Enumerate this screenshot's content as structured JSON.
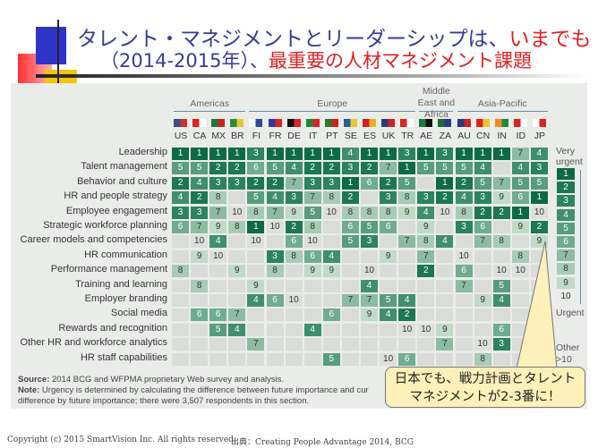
{
  "title": {
    "part1": "タレント・マネジメントとリーダーシップは、",
    "part1_red": "いまでも",
    "part2": "（2014-2015年）、",
    "part2_red": "最重要の人材マネジメント課題"
  },
  "chart_data": {
    "type": "heatmap",
    "regions": [
      {
        "name": "Americas",
        "countries": [
          "US",
          "CA",
          "MX",
          "BR"
        ]
      },
      {
        "name": "Europe",
        "countries": [
          "FI",
          "FR",
          "DE",
          "IT",
          "PT",
          "SE",
          "ES",
          "UK",
          "TR"
        ]
      },
      {
        "name": "Middle East and Africa",
        "countries": [
          "AE",
          "ZA"
        ]
      },
      {
        "name": "Asia-Pacific",
        "countries": [
          "AU",
          "CN",
          "IN",
          "ID",
          "JP"
        ]
      }
    ],
    "columns": [
      "US",
      "CA",
      "MX",
      "BR",
      "FI",
      "FR",
      "DE",
      "IT",
      "PT",
      "SE",
      "ES",
      "UK",
      "TR",
      "AE",
      "ZA",
      "AU",
      "CN",
      "IN",
      "ID",
      "JP"
    ],
    "rows": [
      {
        "label": "Leadership",
        "values": [
          1,
          1,
          1,
          1,
          3,
          1,
          1,
          1,
          1,
          4,
          1,
          1,
          3,
          1,
          3,
          1,
          1,
          1,
          7,
          4
        ]
      },
      {
        "label": "Talent management",
        "values": [
          5,
          5,
          2,
          2,
          6,
          5,
          4,
          2,
          2,
          3,
          2,
          7,
          1,
          5,
          5,
          5,
          4,
          null,
          4,
          3
        ]
      },
      {
        "label": "Behavior and culture",
        "values": [
          2,
          4,
          3,
          3,
          2,
          2,
          7,
          3,
          3,
          1,
          6,
          2,
          5,
          null,
          1,
          2,
          5,
          7,
          5,
          5
        ]
      },
      {
        "label": "HR and people strategy",
        "values": [
          4,
          2,
          8,
          null,
          5,
          4,
          3,
          7,
          8,
          2,
          null,
          3,
          8,
          3,
          2,
          4,
          3,
          9,
          6,
          1
        ]
      },
      {
        "label": "Employee engagement",
        "values": [
          3,
          3,
          7,
          10,
          8,
          7,
          9,
          5,
          10,
          8,
          8,
          8,
          9,
          4,
          10,
          8,
          2,
          2,
          1,
          10
        ]
      },
      {
        "label": "Strategic workforce planning",
        "values": [
          6,
          7,
          9,
          8,
          1,
          10,
          2,
          8,
          null,
          6,
          5,
          6,
          null,
          9,
          null,
          3,
          6,
          null,
          9,
          2
        ]
      },
      {
        "label": "Career models and competencies",
        "values": [
          null,
          10,
          4,
          null,
          10,
          null,
          6,
          10,
          null,
          5,
          3,
          null,
          7,
          8,
          4,
          null,
          7,
          8,
          null,
          9
        ]
      },
      {
        "label": "HR communication",
        "values": [
          null,
          9,
          10,
          null,
          null,
          3,
          8,
          6,
          4,
          null,
          null,
          9,
          null,
          7,
          null,
          10,
          null,
          null,
          8,
          null
        ]
      },
      {
        "label": "Performance management",
        "values": [
          8,
          null,
          null,
          9,
          null,
          8,
          null,
          9,
          9,
          null,
          10,
          null,
          null,
          2,
          null,
          6,
          null,
          10,
          10,
          null
        ]
      },
      {
        "label": "Training and learning",
        "values": [
          null,
          8,
          null,
          null,
          9,
          null,
          null,
          null,
          null,
          null,
          4,
          null,
          null,
          null,
          null,
          7,
          null,
          5,
          null,
          null
        ]
      },
      {
        "label": "Employer branding",
        "values": [
          null,
          null,
          null,
          null,
          4,
          6,
          10,
          null,
          null,
          7,
          7,
          5,
          4,
          null,
          null,
          null,
          9,
          4,
          null,
          null
        ]
      },
      {
        "label": "Social media",
        "values": [
          null,
          6,
          6,
          7,
          null,
          null,
          null,
          null,
          6,
          null,
          9,
          4,
          2,
          null,
          null,
          null,
          null,
          null,
          null,
          null
        ]
      },
      {
        "label": "Rewards and recognition",
        "values": [
          null,
          null,
          5,
          4,
          null,
          null,
          null,
          4,
          null,
          null,
          null,
          null,
          10,
          10,
          9,
          null,
          null,
          6,
          null,
          null
        ]
      },
      {
        "label": "Other HR and workforce analytics",
        "values": [
          null,
          null,
          null,
          null,
          7,
          null,
          null,
          null,
          null,
          null,
          null,
          null,
          null,
          null,
          7,
          null,
          10,
          3,
          null,
          null
        ]
      },
      {
        "label": "HR staff capabilities",
        "values": [
          null,
          null,
          null,
          null,
          null,
          null,
          null,
          null,
          5,
          null,
          null,
          10,
          6,
          null,
          null,
          null,
          8,
          null,
          null,
          null
        ]
      }
    ],
    "legend": {
      "top": "Very urgent",
      "bottom": "Urgent",
      "levels": [
        "1",
        "2",
        "3",
        "4",
        "5",
        "6",
        "7",
        "8",
        "9",
        "10"
      ],
      "other_label": "Other",
      "other_value": ">10"
    },
    "colors": {
      "1": "#0d6a48",
      "2": "#1b7754",
      "3": "#2b8361",
      "4": "#3f8f6e",
      "5": "#579d7e",
      "6": "#70ac91",
      "7": "#8bbca3",
      "8": "#a6cbb6",
      "9": "#c0dac9",
      "10": "#dcdfdc",
      "empty": "#d9dcd9"
    }
  },
  "notes": {
    "source_label": "Source:",
    "source": " 2014 BCG and WFPMA proprietary Web survey and analysis.",
    "note_label": "Note:",
    "note1": " Urgency is determined by calculating the difference between future importance and cur",
    "note2": "difference by future importance; there were 3,507 respondents in this section."
  },
  "callout": {
    "line1": "日本でも、戦力計画とタレント",
    "line2": "マネジメントが2-3番に！"
  },
  "footer": {
    "copyright": "Copyright (c) 2015 SmartVision Inc. All rights reserved.",
    "source": "出典：Creating People Advantage 2014, BCG"
  }
}
